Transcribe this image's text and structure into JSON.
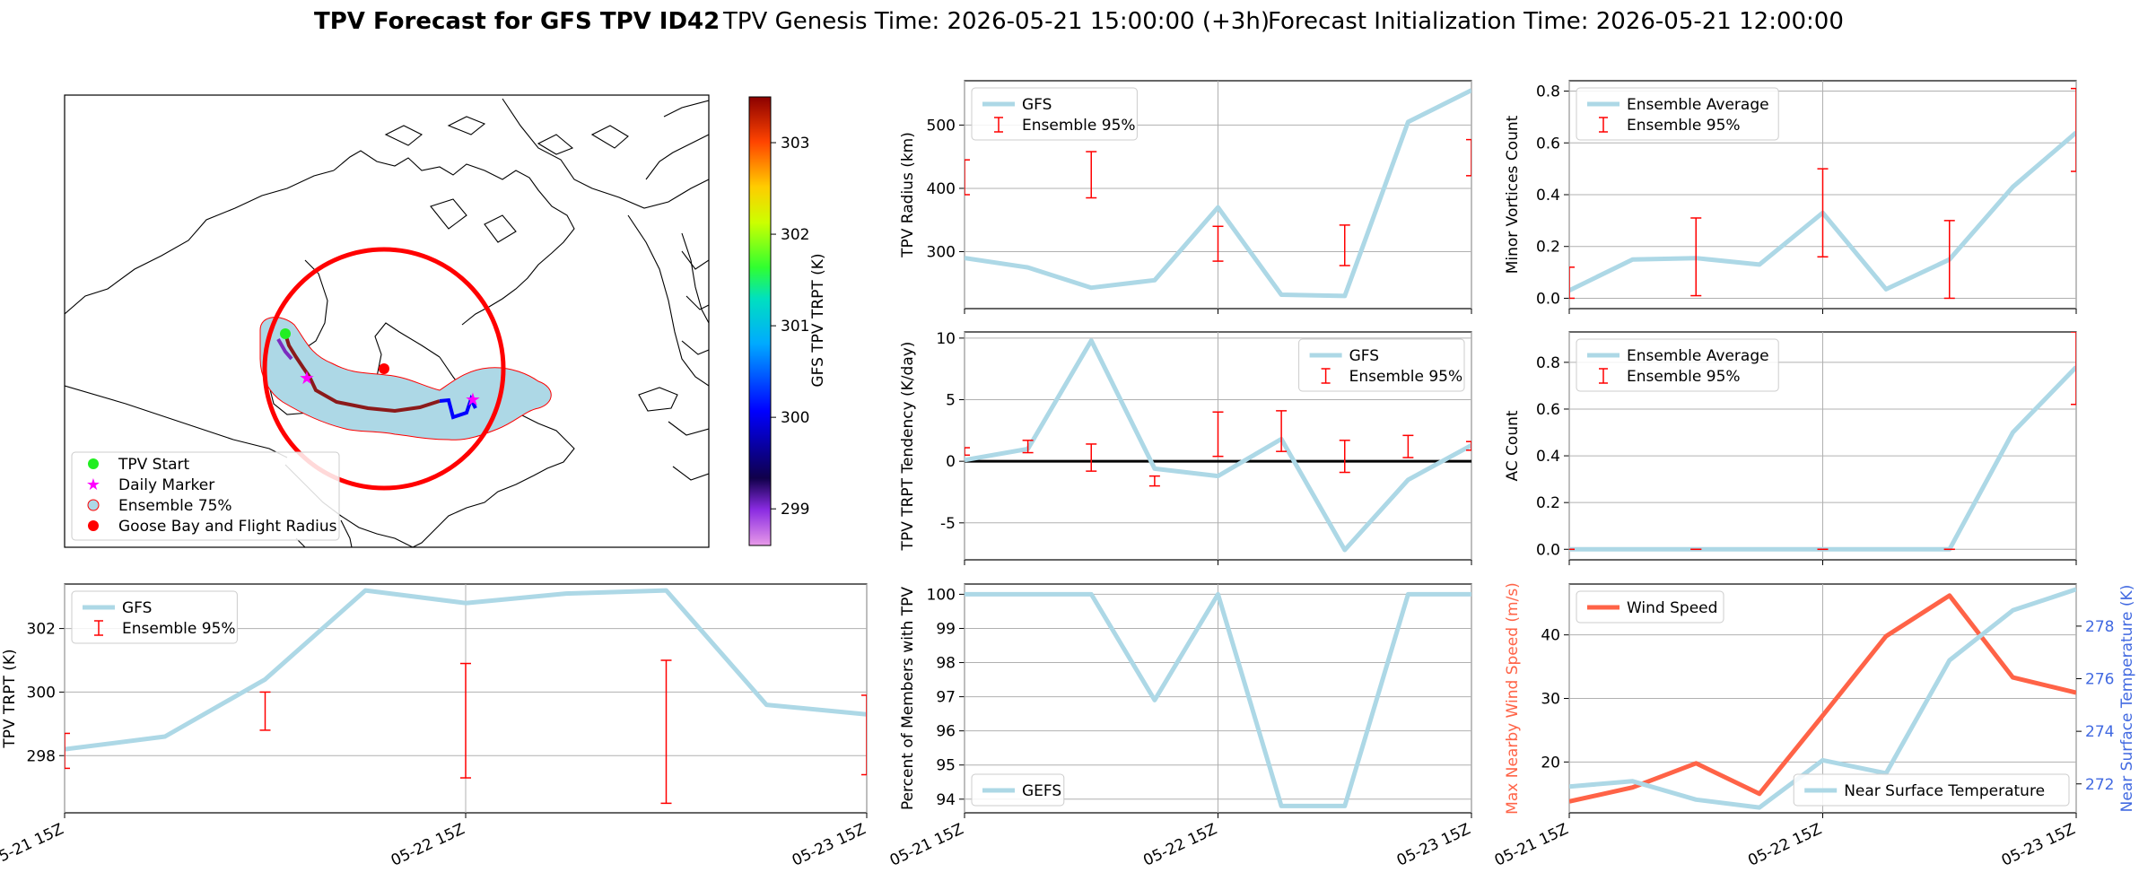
{
  "title": {
    "bold": "TPV Forecast for GFS TPV ID42",
    "genesis": "TPV Genesis Time: 2026-05-21 15:00:00 (+3h)",
    "init": "Forecast Initialization Time: 2026-05-21 12:00:00"
  },
  "colors": {
    "gfs_line": "#add8e6",
    "ensemble_bar": "#ff0000",
    "wind_line": "#ff6347",
    "temp_axis": "#4169e1",
    "map_circle": "#ff0000",
    "ensemble_fill": "#add8e6"
  },
  "map": {
    "colorbar_label": "GFS TPV TRPT (K)",
    "colorbar_ticks": [
      "299",
      "300",
      "301",
      "302",
      "303"
    ],
    "colorbar_range": [
      298.6,
      303.5
    ],
    "legend": [
      "TPV Start",
      "Daily Marker",
      "Ensemble 75%",
      "Goose Bay and Flight Radius"
    ]
  },
  "x_ticks": [
    "05-21 15Z",
    "05-22 15Z",
    "05-23 15Z"
  ],
  "chart_data": [
    {
      "id": "radius",
      "type": "line",
      "ylabel": "TPV Radius (km)",
      "ylim": [
        210,
        570
      ],
      "yticks": [
        300,
        400,
        500
      ],
      "series": [
        {
          "name": "GFS",
          "x": [
            0,
            1,
            2,
            3,
            4,
            5,
            6,
            7,
            8
          ],
          "values": [
            290,
            275,
            243,
            255,
            370,
            232,
            230,
            505,
            555
          ]
        },
        {
          "name": "Ensemble 95%",
          "type": "errorbar",
          "x": [
            0,
            2,
            4,
            6,
            8
          ],
          "low": [
            390,
            385,
            285,
            278,
            420
          ],
          "high": [
            445,
            458,
            340,
            342,
            477
          ]
        }
      ],
      "legend": [
        "GFS",
        "Ensemble 95%"
      ],
      "legend_pos": "upper-left"
    },
    {
      "id": "minor",
      "type": "line",
      "ylabel": "Minor Vortices Count",
      "ylim": [
        -0.04,
        0.84
      ],
      "yticks": [
        0.0,
        0.2,
        0.4,
        0.6,
        0.8
      ],
      "series": [
        {
          "name": "Ensemble Average",
          "x": [
            0,
            1,
            2,
            3,
            4,
            5,
            6,
            7,
            8
          ],
          "values": [
            0.03,
            0.15,
            0.155,
            0.13,
            0.33,
            0.035,
            0.15,
            0.43,
            0.64
          ]
        },
        {
          "name": "Ensemble 95%",
          "type": "errorbar",
          "x": [
            0,
            2,
            4,
            6,
            8
          ],
          "low": [
            0.0,
            0.01,
            0.16,
            0.0,
            0.49
          ],
          "high": [
            0.12,
            0.31,
            0.5,
            0.3,
            0.81
          ]
        }
      ],
      "legend": [
        "Ensemble Average",
        "Ensemble 95%"
      ],
      "legend_pos": "upper-left"
    },
    {
      "id": "tendency",
      "type": "line",
      "ylabel": "TPV TRPT Tendency (K/day)",
      "ylim": [
        -8,
        10.5
      ],
      "yticks": [
        -5,
        0,
        5,
        10
      ],
      "zero_line": true,
      "series": [
        {
          "name": "GFS",
          "x": [
            0,
            1,
            2,
            3,
            4,
            5,
            6,
            7,
            8
          ],
          "values": [
            0.1,
            1.0,
            9.8,
            -0.6,
            -1.2,
            1.8,
            -7.2,
            -1.5,
            1.3
          ]
        },
        {
          "name": "Ensemble 95%",
          "type": "errorbar",
          "x": [
            0,
            1,
            2,
            3,
            4,
            5,
            6,
            7,
            8
          ],
          "low": [
            0.5,
            0.7,
            -0.8,
            -2.0,
            0.4,
            0.8,
            -0.9,
            0.3,
            0.9
          ],
          "high": [
            1.1,
            1.7,
            1.4,
            -1.2,
            4.0,
            4.1,
            1.7,
            2.1,
            1.6
          ]
        }
      ],
      "legend": [
        "GFS",
        "Ensemble 95%"
      ],
      "legend_pos": "upper-right"
    },
    {
      "id": "ac",
      "type": "line",
      "ylabel": "AC Count",
      "ylim": [
        -0.045,
        0.93
      ],
      "yticks": [
        0.0,
        0.2,
        0.4,
        0.6,
        0.8
      ],
      "series": [
        {
          "name": "Ensemble Average",
          "x": [
            0,
            1,
            2,
            3,
            4,
            5,
            6,
            7,
            8
          ],
          "values": [
            0,
            0,
            0,
            0,
            0,
            0,
            0,
            0.5,
            0.78
          ]
        },
        {
          "name": "Ensemble 95%",
          "type": "errorbar",
          "x": [
            0,
            2,
            4,
            6,
            8
          ],
          "low": [
            0,
            0,
            0,
            0,
            0.62
          ],
          "high": [
            0,
            0,
            0,
            0,
            0.93
          ]
        }
      ],
      "legend": [
        "Ensemble Average",
        "Ensemble 95%"
      ],
      "legend_pos": "upper-left"
    },
    {
      "id": "trpt",
      "type": "line",
      "ylabel": "TPV TRPT (K)",
      "ylim": [
        296.2,
        303.4
      ],
      "yticks": [
        298,
        300,
        302
      ],
      "series": [
        {
          "name": "GFS",
          "x": [
            0,
            1,
            2,
            3,
            4,
            5,
            6,
            7,
            8
          ],
          "values": [
            298.2,
            298.6,
            300.4,
            303.2,
            302.8,
            303.1,
            303.2,
            299.6,
            299.3
          ]
        },
        {
          "name": "Ensemble 95%",
          "type": "errorbar",
          "x": [
            0,
            2,
            4,
            6,
            8
          ],
          "low": [
            297.6,
            298.8,
            297.3,
            296.5,
            297.4
          ],
          "high": [
            298.7,
            300.0,
            300.9,
            301.0,
            299.9
          ]
        }
      ],
      "legend": [
        "GFS",
        "Ensemble 95%"
      ],
      "legend_pos": "upper-left"
    },
    {
      "id": "members",
      "type": "line",
      "ylabel": "Percent of Members with TPV",
      "ylim": [
        93.6,
        100.3
      ],
      "yticks": [
        94,
        95,
        96,
        97,
        98,
        99,
        100
      ],
      "series": [
        {
          "name": "GEFS",
          "x": [
            0,
            1,
            2,
            3,
            4,
            5,
            6,
            7,
            8
          ],
          "values": [
            100,
            100,
            100,
            96.9,
            100,
            93.8,
            93.8,
            100,
            100
          ]
        }
      ],
      "legend": [
        "GEFS"
      ],
      "legend_pos": "lower-left"
    },
    {
      "id": "wind",
      "type": "line",
      "dual_axis": true,
      "ylabel": "Max Nearby Wind Speed (m/s)",
      "ylabel_right": "Near Surface Temperature (K)",
      "ylim": [
        12,
        48
      ],
      "yticks": [
        20,
        30,
        40
      ],
      "ylim_right": [
        270.9,
        279.6
      ],
      "yticks_right": [
        272,
        274,
        276,
        278
      ],
      "series": [
        {
          "name": "Wind Speed",
          "axis": "left",
          "x": [
            0,
            1,
            2,
            3,
            4,
            5,
            6,
            7,
            8
          ],
          "values": [
            13.8,
            16.0,
            19.8,
            15.0,
            27.3,
            39.8,
            46.2,
            33.3,
            30.9
          ]
        },
        {
          "name": "Near Surface Temperature",
          "axis": "right",
          "x": [
            0,
            1,
            2,
            3,
            4,
            5,
            6,
            7,
            8
          ],
          "values": [
            271.9,
            272.1,
            271.4,
            271.1,
            272.9,
            272.4,
            276.7,
            278.6,
            279.4
          ]
        }
      ],
      "legend": [
        "Wind Speed"
      ],
      "legend_right": [
        "Near Surface Temperature"
      ]
    }
  ]
}
